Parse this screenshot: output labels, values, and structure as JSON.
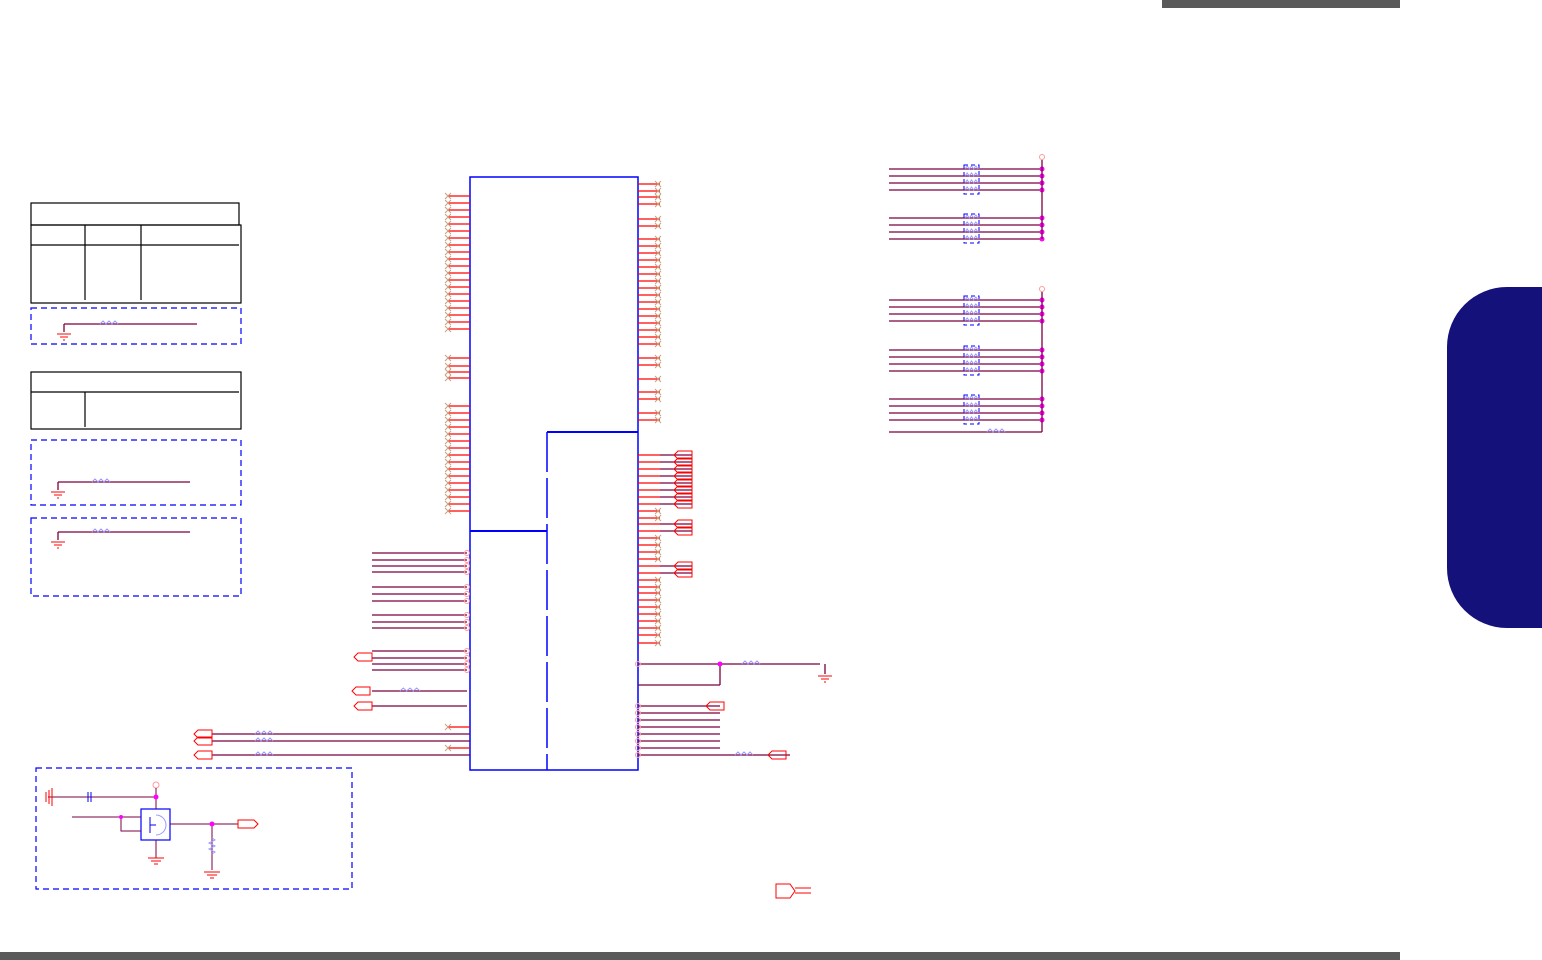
{
  "colors": {
    "chip_outline": "#0000ff",
    "pin": "#ff0000",
    "net": "#7a0040",
    "junction": "#ff00ff",
    "resistor": "#9999ff",
    "no_connect": "#c8a080",
    "table_border": "#000000",
    "group_box": "#0000ff",
    "header_bar": "#5a5a5a",
    "side_tab": "#14127a"
  },
  "icons": [
    "ground-icon",
    "resistor-icon",
    "capacitor-icon",
    "transistor-icon",
    "off-page-connector-icon",
    "no-connect-icon",
    "power-port-icon"
  ]
}
